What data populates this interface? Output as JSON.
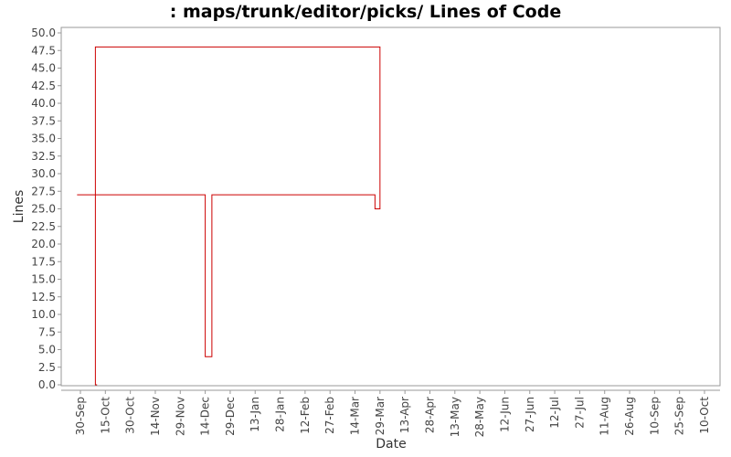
{
  "chart_data": {
    "type": "line",
    "title": ": maps/trunk/editor/picks/ Lines of Code",
    "xlabel": "Date",
    "ylabel": "Lines",
    "ylim": [
      0,
      50
    ],
    "yticks": [
      "0.0",
      "2.5",
      "5.0",
      "7.5",
      "10.0",
      "12.5",
      "15.0",
      "17.5",
      "20.0",
      "22.5",
      "25.0",
      "27.5",
      "30.0",
      "32.5",
      "35.0",
      "37.5",
      "40.0",
      "42.5",
      "45.0",
      "47.5",
      "50.0"
    ],
    "xticks": [
      "30-Sep",
      "15-Oct",
      "30-Oct",
      "14-Nov",
      "29-Nov",
      "14-Dec",
      "29-Dec",
      "13-Jan",
      "28-Jan",
      "12-Feb",
      "27-Feb",
      "14-Mar",
      "29-Mar",
      "13-Apr",
      "28-Apr",
      "13-May",
      "28-May",
      "12-Jun",
      "27-Jun",
      "12-Jul",
      "27-Jul",
      "11-Aug",
      "26-Aug",
      "10-Sep",
      "25-Sep",
      "10-Oct"
    ],
    "step": true,
    "grid": false,
    "line_color": "#cc0000",
    "series": [
      {
        "x": [
          "28-Sep",
          "14-Dec",
          "18-Dec",
          "26-Mar",
          "29-Mar",
          "09-Oct",
          "10-Oct"
        ],
        "values": [
          27,
          4,
          27,
          25,
          48,
          0,
          0
        ]
      }
    ]
  }
}
